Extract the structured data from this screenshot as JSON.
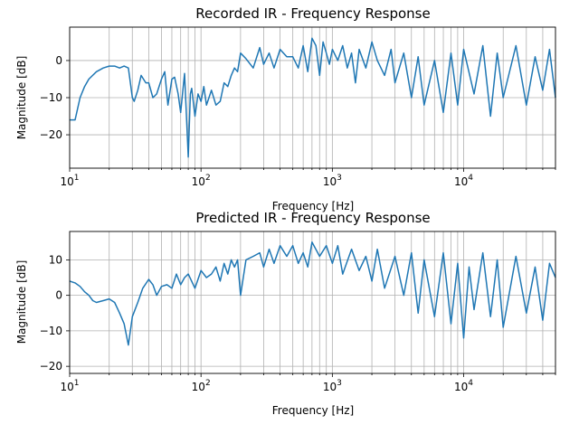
{
  "chart_data": [
    {
      "type": "line",
      "title": "Recorded IR - Frequency Response",
      "xlabel": "Frequency [Hz]",
      "ylabel": "Magnitude [dB]",
      "xscale": "log",
      "xlim": [
        10,
        50000
      ],
      "ylim": [
        -29,
        9
      ],
      "xticks": [
        {
          "base": "10",
          "exp": "1"
        },
        {
          "base": "10",
          "exp": "2"
        },
        {
          "base": "10",
          "exp": "3"
        },
        {
          "base": "10",
          "exp": "4"
        }
      ],
      "yticks": [
        -20,
        -10,
        0
      ],
      "grid": true,
      "color": "#1f77b4",
      "series": [
        {
          "x": [
            10,
            11,
            12,
            13,
            14,
            16,
            18,
            20,
            22,
            24,
            26,
            28,
            30,
            31,
            33,
            35,
            38,
            40,
            43,
            46,
            50,
            53,
            56,
            60,
            63,
            67,
            70,
            75,
            80,
            83,
            85,
            90,
            95,
            100,
            105,
            110,
            115,
            120,
            130,
            140,
            150,
            160,
            170,
            180,
            190,
            200,
            220,
            250,
            280,
            300,
            330,
            360,
            400,
            450,
            500,
            550,
            600,
            650,
            700,
            750,
            800,
            850,
            900,
            950,
            1000,
            1100,
            1200,
            1300,
            1400,
            1500,
            1600,
            1800,
            2000,
            2200,
            2500,
            2800,
            3000,
            3500,
            4000,
            4500,
            5000,
            6000,
            7000,
            8000,
            9000,
            10000,
            12000,
            14000,
            16000,
            18000,
            20000,
            25000,
            30000,
            35000,
            40000,
            45000,
            50000
          ],
          "y": [
            -16,
            -16,
            -10,
            -7,
            -5,
            -3,
            -2,
            -1.5,
            -1.5,
            -2,
            -1.5,
            -2,
            -10,
            -11,
            -8,
            -4,
            -6,
            -6,
            -10,
            -9,
            -5,
            -3,
            -12,
            -5,
            -4.5,
            -9,
            -14,
            -3.5,
            -26,
            -9,
            -7.5,
            -15,
            -9,
            -11,
            -7,
            -12,
            -10,
            -8,
            -12,
            -11,
            -6,
            -7,
            -4,
            -2,
            -3,
            2,
            0.5,
            -2,
            3.5,
            -1,
            2,
            -2,
            3,
            1,
            1,
            -2,
            4,
            -3,
            6,
            4,
            -4,
            5,
            2,
            -1,
            3,
            0,
            4,
            -2,
            2,
            -6,
            3,
            -2,
            5,
            0,
            -4,
            3,
            -6,
            2,
            -10,
            1,
            -12,
            0,
            -14,
            2,
            -12,
            3,
            -9,
            4,
            -15,
            2,
            -10,
            4,
            -12,
            1,
            -8,
            3,
            -10
          ]
        }
      ]
    },
    {
      "type": "line",
      "title": "Predicted IR - Frequency Response",
      "xlabel": "Frequency [Hz]",
      "ylabel": "Magnitude [dB]",
      "xscale": "log",
      "xlim": [
        10,
        50000
      ],
      "ylim": [
        -22,
        18
      ],
      "xticks": [
        {
          "base": "10",
          "exp": "1"
        },
        {
          "base": "10",
          "exp": "2"
        },
        {
          "base": "10",
          "exp": "3"
        },
        {
          "base": "10",
          "exp": "4"
        }
      ],
      "yticks": [
        -20,
        -10,
        0,
        10
      ],
      "grid": true,
      "color": "#1f77b4",
      "series": [
        {
          "x": [
            10,
            11,
            12,
            13,
            14,
            15,
            16,
            18,
            20,
            22,
            24,
            26,
            28,
            30,
            33,
            36,
            40,
            43,
            46,
            50,
            55,
            60,
            65,
            70,
            75,
            80,
            90,
            100,
            110,
            120,
            130,
            140,
            150,
            160,
            170,
            180,
            190,
            200,
            220,
            250,
            280,
            300,
            330,
            360,
            400,
            450,
            500,
            550,
            600,
            650,
            700,
            800,
            900,
            1000,
            1100,
            1200,
            1400,
            1600,
            1800,
            2000,
            2200,
            2500,
            3000,
            3500,
            4000,
            4500,
            5000,
            6000,
            7000,
            8000,
            9000,
            10000,
            11000,
            12000,
            14000,
            16000,
            18000,
            20000,
            25000,
            30000,
            35000,
            40000,
            45000,
            50000
          ],
          "y": [
            4,
            3.5,
            2.5,
            1,
            0,
            -1.5,
            -2,
            -1.5,
            -1,
            -2,
            -5,
            -8,
            -14,
            -6,
            -2,
            2,
            4.5,
            3,
            0,
            2.5,
            3,
            2,
            6,
            3,
            5,
            6,
            2,
            7,
            5,
            6,
            8,
            4,
            9,
            6,
            10,
            8,
            10,
            0,
            10,
            11,
            12,
            8,
            13,
            9,
            14,
            11,
            14,
            9,
            12,
            8,
            15,
            11,
            14,
            9,
            14,
            6,
            13,
            7,
            11,
            4,
            13,
            2,
            11,
            0,
            12,
            -5,
            10,
            -6,
            12,
            -8,
            9,
            -12,
            8,
            -4,
            12,
            -6,
            10,
            -9,
            11,
            -5,
            8,
            -7,
            9,
            5
          ]
        }
      ]
    }
  ]
}
